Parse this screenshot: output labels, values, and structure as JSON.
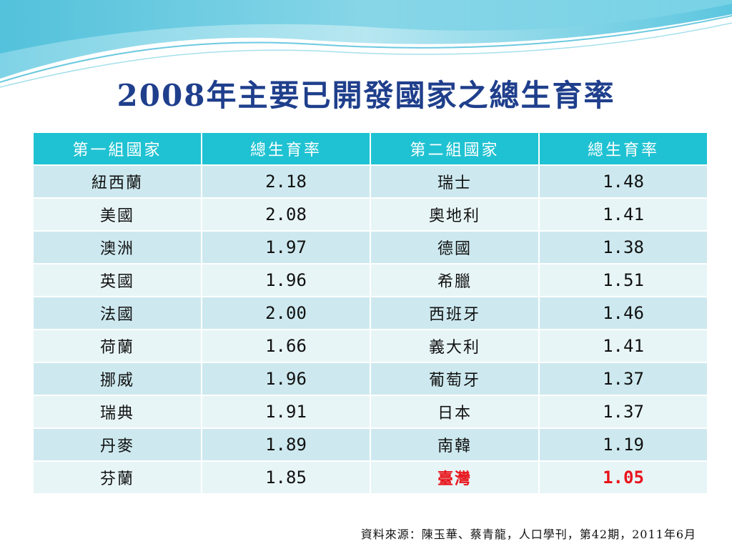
{
  "title": "2008年主要已開發國家之總生育率",
  "table": {
    "headers": [
      "第一組國家",
      "總生育率",
      "第二組國家",
      "總生育率"
    ],
    "rows": [
      [
        "紐西蘭",
        "2.18",
        "瑞士",
        "1.48"
      ],
      [
        "美國",
        "2.08",
        "奧地利",
        "1.41"
      ],
      [
        "澳洲",
        "1.97",
        "德國",
        "1.38"
      ],
      [
        "英國",
        "1.96",
        "希臘",
        "1.51"
      ],
      [
        "法國",
        "2.00",
        "西班牙",
        "1.46"
      ],
      [
        "荷蘭",
        "1.66",
        "義大利",
        "1.41"
      ],
      [
        "挪威",
        "1.96",
        "葡萄牙",
        "1.37"
      ],
      [
        "瑞典",
        "1.91",
        "日本",
        "1.37"
      ],
      [
        "丹麥",
        "1.89",
        "南韓",
        "1.19"
      ],
      [
        "芬蘭",
        "1.85",
        "臺灣",
        "1.05"
      ]
    ]
  },
  "highlight_color": "#e8141b",
  "header_color": "#1fc2d2",
  "source": "資料來源：陳玉華、蔡青龍，人口學刊，第42期，2011年6月"
}
